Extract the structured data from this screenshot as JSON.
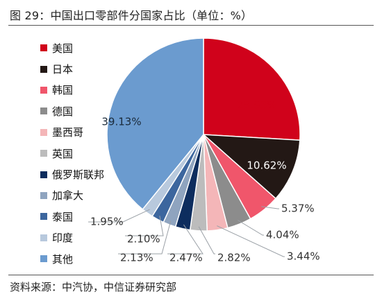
{
  "title": "图 29：中国出口零部件分国家占比（单位：%）",
  "source": "资料来源：中汽协，中信证券研究部",
  "chart_data": {
    "type": "pie",
    "title": "图 29：中国出口零部件分国家占比（单位：%）",
    "legend_position": "left",
    "categories": [
      "美国",
      "日本",
      "韩国",
      "德国",
      "墨西哥",
      "英国",
      "俄罗斯联邦",
      "加拿大",
      "泰国",
      "印度",
      "其他"
    ],
    "values": [
      25.93,
      10.62,
      5.37,
      4.04,
      3.44,
      2.82,
      2.47,
      2.13,
      2.1,
      1.95,
      39.13
    ],
    "labels": [
      "25.93%",
      "10.62%",
      "5.37%",
      "4.04%",
      "3.44%",
      "2.82%",
      "2.47%",
      "2.13%",
      "2.10%",
      "1.95%",
      "39.13%"
    ],
    "colors": [
      "#d0021b",
      "#231815",
      "#f0566b",
      "#8c8c8c",
      "#f4b6b8",
      "#bcbcbc",
      "#0d2d5e",
      "#8fa4bf",
      "#3c669e",
      "#b8c9dd",
      "#6b9bcf"
    ]
  }
}
